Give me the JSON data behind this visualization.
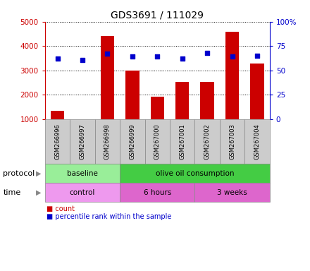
{
  "title": "GDS3691 / 111029",
  "samples": [
    "GSM266996",
    "GSM266997",
    "GSM266998",
    "GSM266999",
    "GSM267000",
    "GSM267001",
    "GSM267002",
    "GSM267003",
    "GSM267004"
  ],
  "counts": [
    1350,
    1000,
    4400,
    3000,
    1920,
    2520,
    2520,
    4600,
    3280
  ],
  "percentile_ranks": [
    62,
    61,
    67,
    64,
    64,
    62,
    68,
    64,
    65
  ],
  "count_color": "#cc0000",
  "percentile_color": "#0000cc",
  "bar_bottom": 1000,
  "ylim_left": [
    1000,
    5000
  ],
  "ylim_right": [
    0,
    100
  ],
  "yticks_left": [
    1000,
    2000,
    3000,
    4000,
    5000
  ],
  "yticks_right": [
    0,
    25,
    50,
    75,
    100
  ],
  "protocol_labels": [
    {
      "text": "baseline",
      "start": 0,
      "end": 3,
      "color": "#99ee99"
    },
    {
      "text": "olive oil consumption",
      "start": 3,
      "end": 9,
      "color": "#44cc44"
    }
  ],
  "time_labels": [
    {
      "text": "control",
      "start": 0,
      "end": 3,
      "color": "#ee99ee"
    },
    {
      "text": "6 hours",
      "start": 3,
      "end": 6,
      "color": "#dd66cc"
    },
    {
      "text": "3 weeks",
      "start": 6,
      "end": 9,
      "color": "#dd66cc"
    }
  ],
  "legend_count_label": "count",
  "legend_percentile_label": "percentile rank within the sample",
  "xlabel_protocol": "protocol",
  "xlabel_time": "time",
  "background_color": "#ffffff",
  "label_box_color": "#cccccc",
  "label_box_edge": "#888888"
}
